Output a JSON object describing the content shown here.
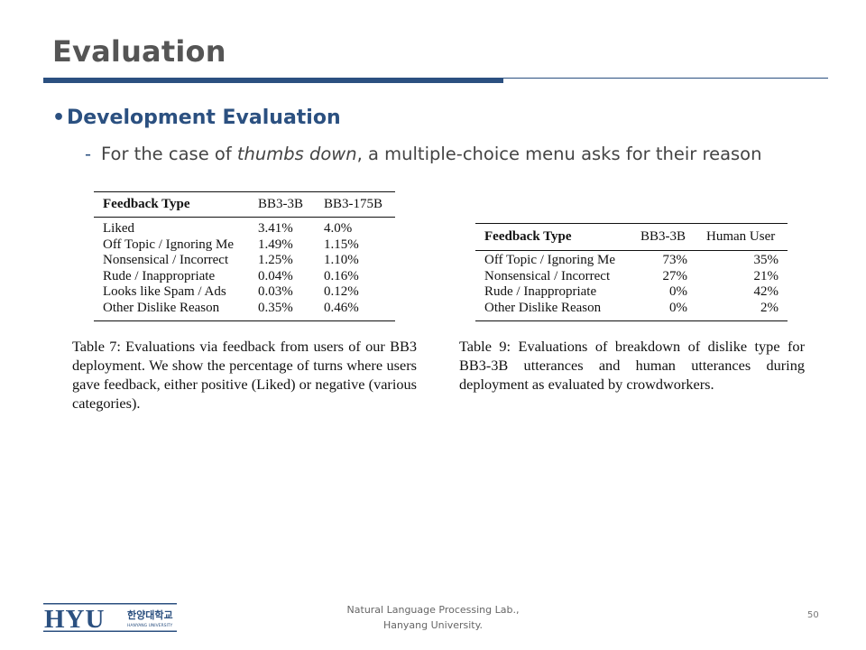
{
  "slide": {
    "title": "Evaluation",
    "bullet": "Development Evaluation",
    "sub_prefix": "For the case of ",
    "sub_italic": "thumbs down",
    "sub_suffix": ", a multiple-choice menu asks for their reason"
  },
  "table7": {
    "headers": [
      "Feedback Type",
      "BB3-3B",
      "BB3-175B"
    ],
    "rows": [
      [
        "Liked",
        "3.41%",
        "4.0%"
      ],
      [
        "Off Topic / Ignoring Me",
        "1.49%",
        "1.15%"
      ],
      [
        "Nonsensical / Incorrect",
        "1.25%",
        "1.10%"
      ],
      [
        "Rude / Inappropriate",
        "0.04%",
        "0.16%"
      ],
      [
        "Looks like Spam / Ads",
        "0.03%",
        "0.12%"
      ],
      [
        "Other Dislike Reason",
        "0.35%",
        "0.46%"
      ]
    ],
    "caption": "Table 7: Evaluations via feedback from users of our BB3 deployment. We show the percentage of turns where users gave feedback, either positive (Liked) or negative (various categories)."
  },
  "table9": {
    "headers": [
      "Feedback Type",
      "BB3-3B",
      "Human User"
    ],
    "rows": [
      [
        "Off Topic / Ignoring Me",
        "73%",
        "35%"
      ],
      [
        "Nonsensical / Incorrect",
        "27%",
        "21%"
      ],
      [
        "Rude / Inappropriate",
        "0%",
        "42%"
      ],
      [
        "Other Dislike Reason",
        "0%",
        "2%"
      ]
    ],
    "caption": "Table 9: Evaluations of breakdown of dislike type for BB3-3B utterances and human utterances during deployment as evaluated by crowdworkers."
  },
  "footer": {
    "lab_line1": "Natural Language Processing Lab.,",
    "lab_line2": "Hanyang University.",
    "page_number": "50",
    "logo_text": "HYU",
    "logo_korean": "한양대학교",
    "logo_english": "HANYANG UNIVERSITY"
  },
  "colors": {
    "accent": "#2b5080",
    "title": "#555555"
  }
}
